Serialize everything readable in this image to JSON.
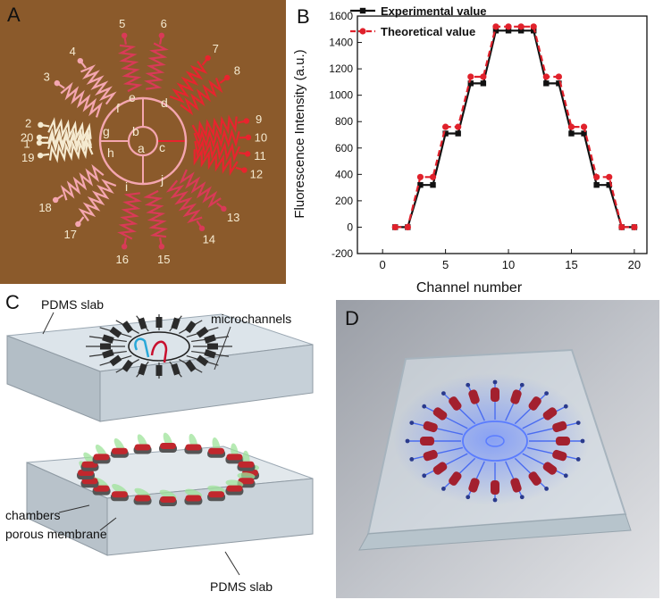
{
  "panelA": {
    "label": "A",
    "numbers": [
      "1",
      "2",
      "3",
      "4",
      "5",
      "6",
      "7",
      "8",
      "9",
      "10",
      "11",
      "12",
      "13",
      "14",
      "15",
      "16",
      "17",
      "18",
      "19",
      "20"
    ],
    "letters": [
      "a",
      "b",
      "c",
      "d",
      "e",
      "f",
      "g",
      "h",
      "i",
      "j"
    ],
    "colors": {
      "background": "#8B5A2B",
      "cream": "#F5EAD0",
      "pink": "#F4A6B0",
      "red": "#E8242E",
      "crimson": "#D93A57"
    }
  },
  "panelB": {
    "label": "B"
  },
  "chart_data": {
    "type": "line",
    "xlabel": "Channel number",
    "ylabel": "Fluorescence Intensity (a.u.)",
    "xlim": [
      -2,
      21
    ],
    "ylim": [
      -200,
      1600
    ],
    "xticks": [
      "0",
      "5",
      "10",
      "15",
      "20"
    ],
    "yticks": [
      "-200",
      "0",
      "200",
      "400",
      "600",
      "800",
      "1000",
      "1200",
      "1400",
      "1600"
    ],
    "x": [
      1,
      2,
      3,
      4,
      5,
      6,
      7,
      8,
      9,
      10,
      11,
      12,
      13,
      14,
      15,
      16,
      17,
      18,
      19,
      20
    ],
    "series": [
      {
        "name": "Experimental value",
        "color": "#111111",
        "marker": "square",
        "values": [
          0,
          0,
          320,
          320,
          710,
          710,
          1090,
          1090,
          1490,
          1490,
          1490,
          1490,
          1090,
          1090,
          710,
          710,
          320,
          320,
          0,
          0
        ]
      },
      {
        "name": "Theoretical value",
        "color": "#E0212B",
        "marker": "circle",
        "dashed": true,
        "values": [
          0,
          0,
          380,
          380,
          760,
          760,
          1140,
          1140,
          1520,
          1520,
          1520,
          1520,
          1140,
          1140,
          760,
          760,
          380,
          380,
          0,
          0
        ]
      }
    ]
  },
  "panelC": {
    "label": "C",
    "annotations": {
      "pdms_top": "PDMS slab",
      "microchannels": "microchannels",
      "chambers": "chambers",
      "membrane": "porous membrane",
      "pdms_bottom": "PDMS slab"
    }
  },
  "panelD": {
    "label": "D"
  }
}
